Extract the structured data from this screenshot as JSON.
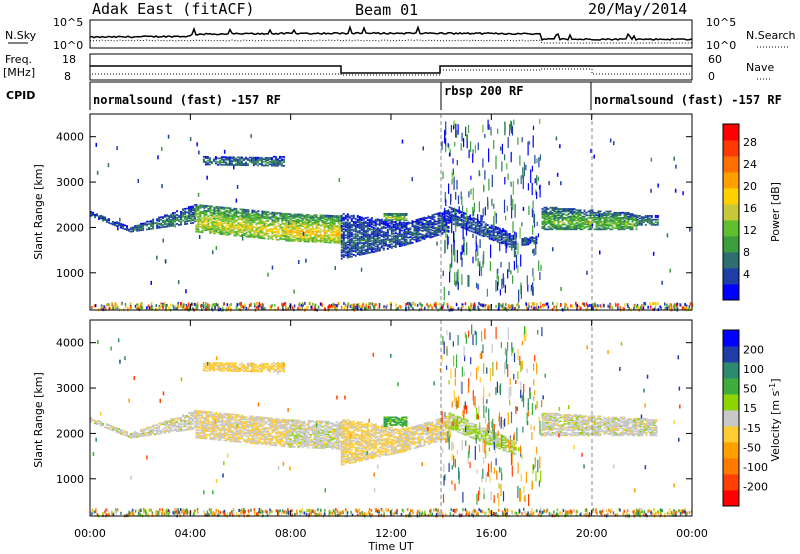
{
  "header": {
    "station": "Adak East (fitACF)",
    "beam": "Beam 01",
    "date": "20/May/2014"
  },
  "strip": {
    "nsky_label": "N.Sky",
    "nsearch_label": "N.Search",
    "nsky_ticks": [
      "10^5",
      "10^0"
    ],
    "nsearch_ticks": [
      "10^5",
      "10^0"
    ],
    "freq_label": "Freq.",
    "freq_unit": "[MHz]",
    "freq_ticks": [
      "18",
      "8"
    ],
    "nave_label": "Nave",
    "nave_ticks": [
      "60",
      "0"
    ],
    "cpid_label": "CPID",
    "cpid_segments": [
      {
        "label": "normalsound (fast) -157 RF",
        "start_hour": 0,
        "end_hour": 14
      },
      {
        "label": "rbsp 200 RF",
        "start_hour": 14,
        "end_hour": 20
      },
      {
        "label": "normalsound (fast) -157 RF",
        "start_hour": 20,
        "end_hour": 24
      }
    ]
  },
  "chart_data": [
    {
      "type": "heatmap",
      "name": "power",
      "ylabel": "Slant Range [km]",
      "xlim": [
        0,
        24
      ],
      "ylim": [
        180,
        4500
      ],
      "yticks": [
        "1000",
        "2000",
        "3000",
        "4000"
      ],
      "colorbar": {
        "label": "Power [dB]",
        "ticks": [
          "28",
          "24",
          "20",
          "16",
          "12",
          "8",
          "4"
        ],
        "range": [
          0,
          30
        ],
        "colors": [
          "#0000ff",
          "#1f3da8",
          "#2e6e6e",
          "#3d9e3d",
          "#5fbf2f",
          "#c8c83a",
          "#ffd000",
          "#ffa000",
          "#ff7000",
          "#ff3a00",
          "#ff0000"
        ]
      },
      "bands": [
        {
          "x": [
            0.0,
            1.6
          ],
          "y0": [
            2350,
            2000
          ],
          "y1": [
            2250,
            1900
          ],
          "level": 6
        },
        {
          "x": [
            1.6,
            4.2
          ],
          "y0": [
            2000,
            2500
          ],
          "y1": [
            1900,
            2100
          ],
          "level": 8
        },
        {
          "x": [
            4.2,
            7.8
          ],
          "y0": [
            2500,
            2300
          ],
          "y1": [
            1900,
            1700
          ],
          "level": 16
        },
        {
          "x": [
            7.8,
            10.0
          ],
          "y0": [
            2300,
            2250
          ],
          "y1": [
            1700,
            1650
          ],
          "level": 18
        },
        {
          "x": [
            4.5,
            7.7
          ],
          "y0": [
            3550,
            3550
          ],
          "y1": [
            3380,
            3350
          ],
          "level": 8
        },
        {
          "x": [
            10.0,
            12.5
          ],
          "y0": [
            2300,
            2100
          ],
          "y1": [
            1300,
            1600
          ],
          "level": 6
        },
        {
          "x": [
            11.7,
            12.6
          ],
          "y0": [
            2300,
            2300
          ],
          "y1": [
            2150,
            2150
          ],
          "level": 14
        },
        {
          "x": [
            12.5,
            14.3
          ],
          "y0": [
            2100,
            2400
          ],
          "y1": [
            1600,
            1900
          ],
          "level": 6
        },
        {
          "x": [
            14.3,
            17.0
          ],
          "y0": [
            2450,
            1800
          ],
          "y1": [
            2100,
            1500
          ],
          "level": 6
        },
        {
          "x": [
            17.2,
            17.8
          ],
          "y0": [
            1750,
            1800
          ],
          "y1": [
            1600,
            1650
          ],
          "level": 6
        },
        {
          "x": [
            18.0,
            21.8
          ],
          "y0": [
            2450,
            2300
          ],
          "y1": [
            1950,
            1950
          ],
          "level": 12
        },
        {
          "x": [
            21.8,
            22.6
          ],
          "y0": [
            2250,
            2250
          ],
          "y1": [
            2050,
            2050
          ],
          "level": 8
        }
      ]
    },
    {
      "type": "heatmap",
      "name": "velocity",
      "ylabel": "Slant Range [km]",
      "xlim": [
        0,
        24
      ],
      "ylim": [
        180,
        4500
      ],
      "yticks": [
        "1000",
        "2000",
        "3000",
        "4000"
      ],
      "colorbar": {
        "label": "Velocity [m s^-1]",
        "ticks": [
          "200",
          "100",
          "50",
          "15",
          "-15",
          "-50",
          "-100",
          "-200"
        ],
        "range": [
          -250,
          250
        ],
        "colors": [
          "#ff0000",
          "#ff4000",
          "#ff7a00",
          "#ffa000",
          "#ffcc33",
          "#c8c8c8",
          "#8ed400",
          "#3dae3d",
          "#2e8a6e",
          "#1f3da8",
          "#0000ff"
        ]
      },
      "bands": [
        {
          "x": [
            0.0,
            1.6
          ],
          "y0": [
            2350,
            2000
          ],
          "y1": [
            2250,
            1900
          ],
          "level": 0
        },
        {
          "x": [
            1.6,
            4.2
          ],
          "y0": [
            2000,
            2500
          ],
          "y1": [
            1900,
            2100
          ],
          "level": 0
        },
        {
          "x": [
            4.2,
            7.8
          ],
          "y0": [
            2500,
            2300
          ],
          "y1": [
            1900,
            1700
          ],
          "level": -20
        },
        {
          "x": [
            7.8,
            10.0
          ],
          "y0": [
            2300,
            2250
          ],
          "y1": [
            1700,
            1650
          ],
          "level": 0
        },
        {
          "x": [
            4.5,
            7.7
          ],
          "y0": [
            3550,
            3550
          ],
          "y1": [
            3380,
            3350
          ],
          "level": -40
        },
        {
          "x": [
            10.0,
            12.5
          ],
          "y0": [
            2300,
            2100
          ],
          "y1": [
            1300,
            1600
          ],
          "level": -30
        },
        {
          "x": [
            11.7,
            12.6
          ],
          "y0": [
            2350,
            2350
          ],
          "y1": [
            2150,
            2150
          ],
          "level": 90
        },
        {
          "x": [
            12.5,
            14.3
          ],
          "y0": [
            2100,
            2400
          ],
          "y1": [
            1600,
            1900
          ],
          "level": -20
        },
        {
          "x": [
            14.3,
            17.0
          ],
          "y0": [
            2450,
            1800
          ],
          "y1": [
            2100,
            1500
          ],
          "level": 25
        },
        {
          "x": [
            18.0,
            22.6
          ],
          "y0": [
            2450,
            2300
          ],
          "y1": [
            1950,
            1950
          ],
          "level": 0
        }
      ]
    }
  ],
  "xaxis": {
    "label": "Time UT",
    "ticks": [
      "00:00",
      "04:00",
      "08:00",
      "12:00",
      "16:00",
      "20:00",
      "00:00"
    ],
    "tick_hours": [
      0,
      4,
      8,
      12,
      16,
      20,
      24
    ]
  },
  "colors": {
    "axis": "#000000",
    "background": "#ffffff",
    "dashed": "#888888"
  }
}
